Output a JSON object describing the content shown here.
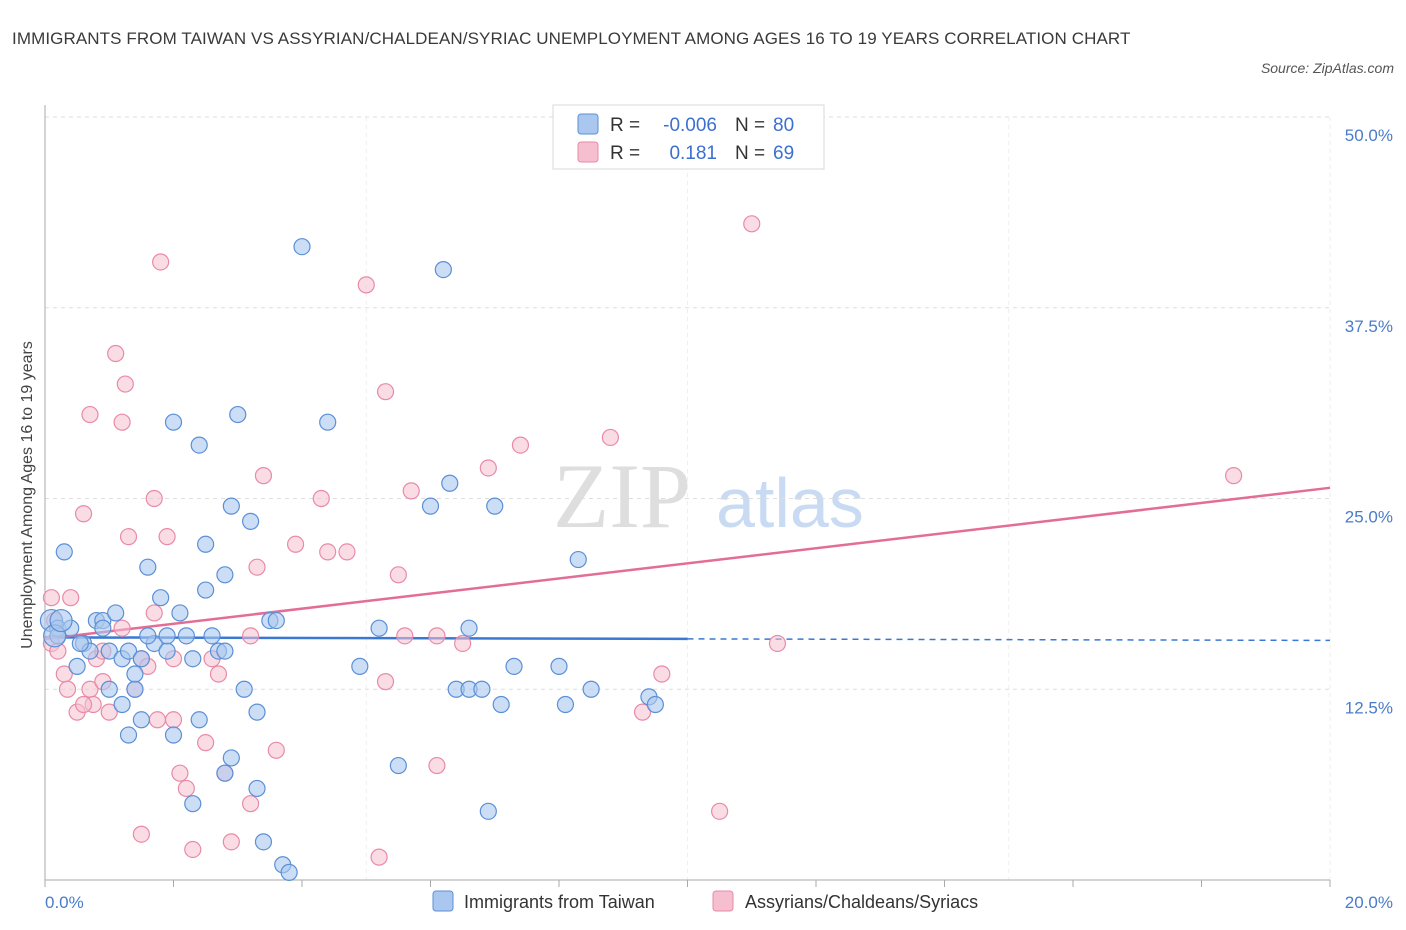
{
  "title": "IMMIGRANTS FROM TAIWAN VS ASSYRIAN/CHALDEAN/SYRIAC UNEMPLOYMENT AMONG AGES 16 TO 19 YEARS CORRELATION CHART",
  "source": "Source: ZipAtlas.com",
  "watermark": {
    "zip": "ZIP",
    "atlas": "atlas"
  },
  "colors": {
    "blue_fill": "#aac8ef",
    "blue_stroke": "#5b8fd6",
    "blue_line": "#3b78d4",
    "pink_fill": "#f6bfd0",
    "pink_stroke": "#e98aa8",
    "pink_line": "#e46d96",
    "tick_color": "#4a7cc9",
    "grid": "#dddddd"
  },
  "legend": {
    "row1": {
      "r_label": "R =",
      "r_value": "-0.006",
      "n_label": "N =",
      "n_value": "80"
    },
    "row2": {
      "r_label": "R =",
      "r_value": "0.181",
      "n_label": "N =",
      "n_value": "69"
    }
  },
  "chart_data": {
    "type": "scatter",
    "title": "IMMIGRANTS FROM TAIWAN VS ASSYRIAN/CHALDEAN/SYRIAC UNEMPLOYMENT AMONG AGES 16 TO 19 YEARS CORRELATION CHART",
    "xlabel": "",
    "ylabel": "Unemployment Among Ages 16 to 19 years",
    "xlim": [
      0,
      20
    ],
    "ylim": [
      0,
      50
    ],
    "x_tick_labels": [
      "0.0%",
      "20.0%"
    ],
    "y_ticks": [
      12.5,
      25.0,
      37.5,
      50.0
    ],
    "y_tick_labels": [
      "12.5%",
      "25.0%",
      "37.5%",
      "50.0%"
    ],
    "grid": true,
    "legend_position": "top-center",
    "series": [
      {
        "name": "Immigrants from Taiwan",
        "color": "blue",
        "R": -0.006,
        "N": 80,
        "trend": {
          "x0": 0,
          "y0": 15.9,
          "x1": 10.0,
          "y1": 15.8,
          "dashed_to_x": 20,
          "dashed_y": 15.7
        },
        "points": [
          [
            0.1,
            17.0
          ],
          [
            0.2,
            16.5
          ],
          [
            0.2,
            16.0
          ],
          [
            0.3,
            21.5
          ],
          [
            0.4,
            16.5
          ],
          [
            0.5,
            14.0
          ],
          [
            0.6,
            15.5
          ],
          [
            0.7,
            15.0
          ],
          [
            0.8,
            17.0
          ],
          [
            0.9,
            17.0
          ],
          [
            1.0,
            15.0
          ],
          [
            1.1,
            17.5
          ],
          [
            1.2,
            14.5
          ],
          [
            1.2,
            11.5
          ],
          [
            1.3,
            15.0
          ],
          [
            1.4,
            12.5
          ],
          [
            1.4,
            13.5
          ],
          [
            1.5,
            14.5
          ],
          [
            1.6,
            20.5
          ],
          [
            1.7,
            15.5
          ],
          [
            1.8,
            18.5
          ],
          [
            1.9,
            15.0
          ],
          [
            1.9,
            16.0
          ],
          [
            2.0,
            30.0
          ],
          [
            2.1,
            17.5
          ],
          [
            2.2,
            16.0
          ],
          [
            2.3,
            14.5
          ],
          [
            2.4,
            10.5
          ],
          [
            2.5,
            19.0
          ],
          [
            2.6,
            16.0
          ],
          [
            2.7,
            15.0
          ],
          [
            2.8,
            7.0
          ],
          [
            2.9,
            24.5
          ],
          [
            3.0,
            30.5
          ],
          [
            3.1,
            12.5
          ],
          [
            3.2,
            23.5
          ],
          [
            3.3,
            6.0
          ],
          [
            3.4,
            2.5
          ],
          [
            3.5,
            17.0
          ],
          [
            3.6,
            17.0
          ],
          [
            3.7,
            1.0
          ],
          [
            3.8,
            0.5
          ],
          [
            4.0,
            41.5
          ],
          [
            4.4,
            30.0
          ],
          [
            4.9,
            14.0
          ],
          [
            5.2,
            16.5
          ],
          [
            5.5,
            7.5
          ],
          [
            6.0,
            24.5
          ],
          [
            6.2,
            40.0
          ],
          [
            6.3,
            26.0
          ],
          [
            6.4,
            12.5
          ],
          [
            6.6,
            12.5
          ],
          [
            6.6,
            16.5
          ],
          [
            6.8,
            12.5
          ],
          [
            6.9,
            4.5
          ],
          [
            7.0,
            24.5
          ],
          [
            7.1,
            11.5
          ],
          [
            7.3,
            14.0
          ],
          [
            8.0,
            14.0
          ],
          [
            8.1,
            11.5
          ],
          [
            8.3,
            21.0
          ],
          [
            8.5,
            12.5
          ],
          [
            0.15,
            16.0
          ],
          [
            0.25,
            17.0
          ],
          [
            0.9,
            16.5
          ],
          [
            1.0,
            12.5
          ],
          [
            1.5,
            10.5
          ],
          [
            2.0,
            9.5
          ],
          [
            2.4,
            28.5
          ],
          [
            2.5,
            22.0
          ],
          [
            2.8,
            20.0
          ],
          [
            2.9,
            8.0
          ],
          [
            3.3,
            11.0
          ],
          [
            2.3,
            5.0
          ],
          [
            1.3,
            9.5
          ],
          [
            9.4,
            12.0
          ],
          [
            9.5,
            11.5
          ],
          [
            2.8,
            15.0
          ],
          [
            1.6,
            16.0
          ],
          [
            0.55,
            15.5
          ]
        ]
      },
      {
        "name": "Assyrians/Chaldeans/Syriacs",
        "color": "pink",
        "R": 0.181,
        "N": 69,
        "trend": {
          "x0": 0,
          "y0": 15.8,
          "x1": 20,
          "y1": 25.7
        },
        "points": [
          [
            0.1,
            18.5
          ],
          [
            0.1,
            15.5
          ],
          [
            0.2,
            15.0
          ],
          [
            0.3,
            13.5
          ],
          [
            0.35,
            12.5
          ],
          [
            0.4,
            18.5
          ],
          [
            0.5,
            11.0
          ],
          [
            0.6,
            24.0
          ],
          [
            0.7,
            12.5
          ],
          [
            0.7,
            30.5
          ],
          [
            0.75,
            11.5
          ],
          [
            0.8,
            14.5
          ],
          [
            0.9,
            15.0
          ],
          [
            0.9,
            13.0
          ],
          [
            1.0,
            11.0
          ],
          [
            1.1,
            34.5
          ],
          [
            1.2,
            16.5
          ],
          [
            1.2,
            30.0
          ],
          [
            1.25,
            32.5
          ],
          [
            1.3,
            22.5
          ],
          [
            1.4,
            12.5
          ],
          [
            1.5,
            14.5
          ],
          [
            1.5,
            3.0
          ],
          [
            1.7,
            25.0
          ],
          [
            1.7,
            17.5
          ],
          [
            1.75,
            10.5
          ],
          [
            1.8,
            40.5
          ],
          [
            1.9,
            22.5
          ],
          [
            2.0,
            10.5
          ],
          [
            2.1,
            7.0
          ],
          [
            2.2,
            6.0
          ],
          [
            2.3,
            2.0
          ],
          [
            2.5,
            9.0
          ],
          [
            2.6,
            14.5
          ],
          [
            2.7,
            13.5
          ],
          [
            2.8,
            7.0
          ],
          [
            2.9,
            2.5
          ],
          [
            3.2,
            16.0
          ],
          [
            3.2,
            5.0
          ],
          [
            3.3,
            20.5
          ],
          [
            3.4,
            26.5
          ],
          [
            3.6,
            8.5
          ],
          [
            3.9,
            22.0
          ],
          [
            4.3,
            25.0
          ],
          [
            4.4,
            21.5
          ],
          [
            4.7,
            21.5
          ],
          [
            5.0,
            39.0
          ],
          [
            5.2,
            1.5
          ],
          [
            5.3,
            32.0
          ],
          [
            5.3,
            13.0
          ],
          [
            5.5,
            20.0
          ],
          [
            5.6,
            16.0
          ],
          [
            5.7,
            25.5
          ],
          [
            6.1,
            16.0
          ],
          [
            6.1,
            7.5
          ],
          [
            6.5,
            15.5
          ],
          [
            6.9,
            27.0
          ],
          [
            7.4,
            28.5
          ],
          [
            8.8,
            29.0
          ],
          [
            9.3,
            11.0
          ],
          [
            9.6,
            13.5
          ],
          [
            10.5,
            4.5
          ],
          [
            11.0,
            43.0
          ],
          [
            11.4,
            15.5
          ],
          [
            18.5,
            26.5
          ],
          [
            0.15,
            17.0
          ],
          [
            0.6,
            11.5
          ],
          [
            1.6,
            14.0
          ],
          [
            2.0,
            14.5
          ]
        ]
      }
    ]
  },
  "bottom_legend": {
    "item1": "Immigrants from Taiwan",
    "item2": "Assyrians/Chaldeans/Syriacs"
  }
}
